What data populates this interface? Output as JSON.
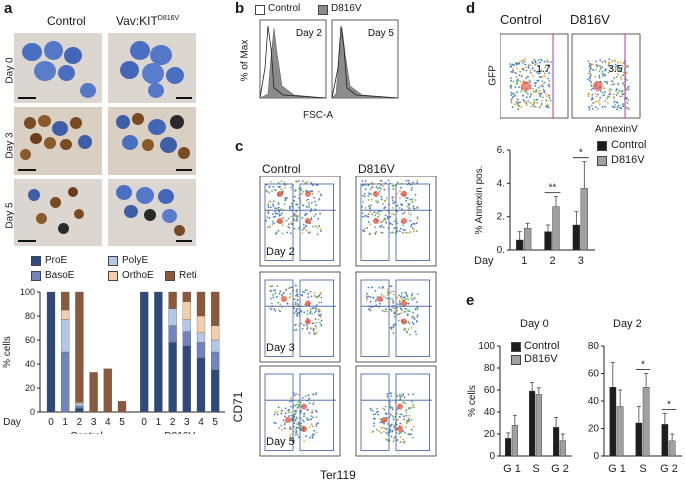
{
  "panels": {
    "a": {
      "label": "a",
      "col_control": "Control",
      "col_mut_prefix": "Vav:KIT",
      "col_mut_sup": "D816V",
      "row_labels": [
        "Day 0",
        "Day 3",
        "Day 5"
      ]
    },
    "b": {
      "label": "b",
      "legend_control": "Control",
      "legend_mut": "D816V",
      "ylabel": "% of Max",
      "xlabel": "FSC-A",
      "day_labels": [
        "Day 2",
        "Day 5"
      ]
    },
    "c": {
      "label": "c",
      "col_control": "Control",
      "col_mut": "D816V",
      "row_labels": [
        "Day 2",
        "Day 3",
        "Day 5"
      ],
      "ylabel": "CD71",
      "xlabel": "Ter119"
    },
    "d": {
      "label": "d",
      "col_control": "Control",
      "col_mut": "D816V",
      "ylabel_flow": "GFP",
      "xlabel_flow": "AnnexinV",
      "gate_control": "1.7",
      "gate_mut": "3.5"
    },
    "e": {
      "label": "e",
      "titles": [
        "Day 0",
        "Day 2"
      ]
    }
  },
  "colors": {
    "proE": "#2e4a7d",
    "basoE": "#7284bf",
    "polyE": "#b4c7e7",
    "orthoE": "#f3ceab",
    "reti": "#8b5a3c",
    "control": "#1e1e1e",
    "mut": "#a0a0a0",
    "hist_fill": "#8c8c8c"
  },
  "chart_data": [
    {
      "id": "a-stacked",
      "type": "bar",
      "stacked": true,
      "ylabel": "% cells",
      "xlabel": "Day",
      "ylim": [
        0,
        100
      ],
      "yticks": [
        0,
        20,
        40,
        60,
        80,
        100
      ],
      "categories": [
        "0",
        "1",
        "2",
        "3",
        "4",
        "5",
        "0",
        "1",
        "2",
        "3",
        "4",
        "5"
      ],
      "groups": [
        {
          "name": "Control",
          "count": 6
        },
        {
          "name": "D816V",
          "count": 6
        }
      ],
      "series": [
        {
          "name": "ProE",
          "values": [
            100,
            0,
            3,
            0,
            0,
            0,
            100,
            100,
            58,
            55,
            45,
            35
          ]
        },
        {
          "name": "BasoE",
          "values": [
            0,
            50,
            2,
            0,
            0,
            0,
            0,
            0,
            14,
            12,
            13,
            15
          ]
        },
        {
          "name": "PolyE",
          "values": [
            0,
            27,
            2,
            0,
            0,
            0,
            0,
            0,
            14,
            10,
            8,
            10
          ]
        },
        {
          "name": "OrthoE",
          "values": [
            0,
            8,
            1,
            0,
            0,
            0,
            0,
            0,
            0,
            15,
            14,
            12
          ]
        },
        {
          "name": "Reti",
          "values": [
            0,
            15,
            92,
            33,
            36,
            9,
            0,
            0,
            14,
            8,
            20,
            28
          ]
        }
      ],
      "legend_order": [
        "ProE",
        "PolyE",
        "BasoE",
        "OrthoE",
        "Reti"
      ]
    },
    {
      "id": "d-annexin",
      "type": "bar",
      "ylabel": "% Annexin pos.",
      "xlabel": "Day",
      "ylim": [
        0,
        6
      ],
      "yticks": [
        0,
        2,
        4,
        6
      ],
      "yticklabels": [
        "0.",
        "2.",
        "4.",
        "6."
      ],
      "categories": [
        "1",
        "2",
        "3"
      ],
      "series": [
        {
          "name": "Control",
          "values": [
            0.6,
            1.1,
            1.5
          ],
          "errors": [
            0.5,
            0.4,
            0.8
          ]
        },
        {
          "name": "D816V",
          "values": [
            1.3,
            2.6,
            3.7
          ],
          "errors": [
            0.3,
            0.6,
            1.6
          ]
        }
      ],
      "annotations": [
        {
          "category": "2",
          "text": "**"
        },
        {
          "category": "3",
          "text": "*"
        }
      ]
    },
    {
      "id": "e-day0",
      "type": "bar",
      "title": "Day 0",
      "ylabel": "% cells",
      "ylim": [
        0,
        100
      ],
      "yticks": [
        0,
        20,
        40,
        60,
        80,
        100
      ],
      "categories": [
        "G 1",
        "S",
        "G 2"
      ],
      "series": [
        {
          "name": "Control",
          "values": [
            16,
            59,
            26
          ],
          "errors": [
            5,
            8,
            9
          ]
        },
        {
          "name": "D816V",
          "values": [
            28,
            56,
            14
          ],
          "errors": [
            9,
            6,
            6
          ]
        }
      ],
      "legend": [
        "Control",
        "D816V"
      ]
    },
    {
      "id": "e-day2",
      "type": "bar",
      "title": "Day 2",
      "ylim": [
        0,
        80
      ],
      "yticks": [
        0,
        20,
        40,
        60,
        80
      ],
      "categories": [
        "G 1",
        "S",
        "G 2"
      ],
      "series": [
        {
          "name": "Control",
          "values": [
            50,
            24,
            23
          ],
          "errors": [
            18,
            12,
            8
          ]
        },
        {
          "name": "D816V",
          "values": [
            36,
            50,
            11
          ],
          "errors": [
            12,
            10,
            5
          ]
        }
      ],
      "annotations": [
        {
          "category": "S",
          "text": "*"
        },
        {
          "category": "G 2",
          "text": "*"
        }
      ]
    }
  ]
}
